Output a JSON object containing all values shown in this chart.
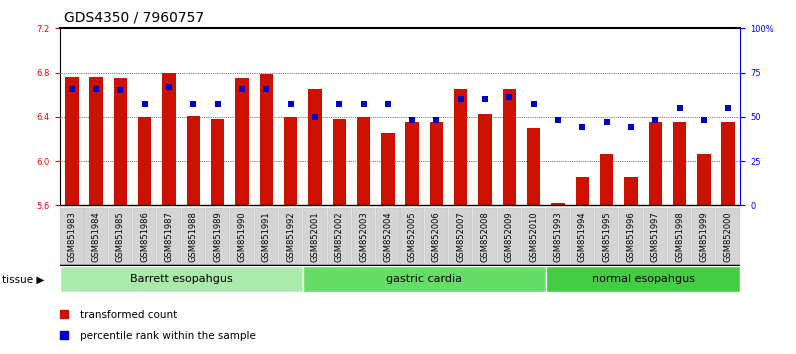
{
  "title": "GDS4350 / 7960757",
  "samples": [
    "GSM851983",
    "GSM851984",
    "GSM851985",
    "GSM851986",
    "GSM851987",
    "GSM851988",
    "GSM851989",
    "GSM851990",
    "GSM851991",
    "GSM851992",
    "GSM852001",
    "GSM852002",
    "GSM852003",
    "GSM852004",
    "GSM852005",
    "GSM852006",
    "GSM852007",
    "GSM852008",
    "GSM852009",
    "GSM852010",
    "GSM851993",
    "GSM851994",
    "GSM851995",
    "GSM851996",
    "GSM851997",
    "GSM851998",
    "GSM851999",
    "GSM852000"
  ],
  "bar_values": [
    6.76,
    6.76,
    6.75,
    6.4,
    6.8,
    6.41,
    6.38,
    6.75,
    6.79,
    6.4,
    6.65,
    6.38,
    6.4,
    6.25,
    6.35,
    6.35,
    6.65,
    6.43,
    6.65,
    6.3,
    5.62,
    5.86,
    6.06,
    5.86,
    6.35,
    6.35,
    6.06,
    6.35
  ],
  "percentile_values": [
    66,
    66,
    65,
    57,
    67,
    57,
    57,
    66,
    66,
    57,
    50,
    57,
    57,
    57,
    48,
    48,
    60,
    60,
    61,
    57,
    48,
    44,
    47,
    44,
    48,
    55,
    48,
    55
  ],
  "groups": [
    {
      "label": "Barrett esopahgus",
      "start": 0,
      "end": 10,
      "color": "#aaeaaa"
    },
    {
      "label": "gastric cardia",
      "start": 10,
      "end": 20,
      "color": "#66dd66"
    },
    {
      "label": "normal esopahgus",
      "start": 20,
      "end": 28,
      "color": "#44cc44"
    }
  ],
  "ylim_left": [
    5.6,
    7.2
  ],
  "ylim_right": [
    0,
    100
  ],
  "yticks_left": [
    5.6,
    6.0,
    6.4,
    6.8,
    7.2
  ],
  "yticks_right": [
    0,
    25,
    50,
    75,
    100
  ],
  "ytick_labels_right": [
    "0",
    "25",
    "50",
    "75",
    "100%"
  ],
  "bar_color": "#cc1100",
  "dot_color": "#0000cc",
  "bar_bottom": 5.6,
  "bar_width": 0.55,
  "title_fontsize": 10,
  "tick_fontsize": 6,
  "xtick_fontsize": 6,
  "group_label_fontsize": 8
}
